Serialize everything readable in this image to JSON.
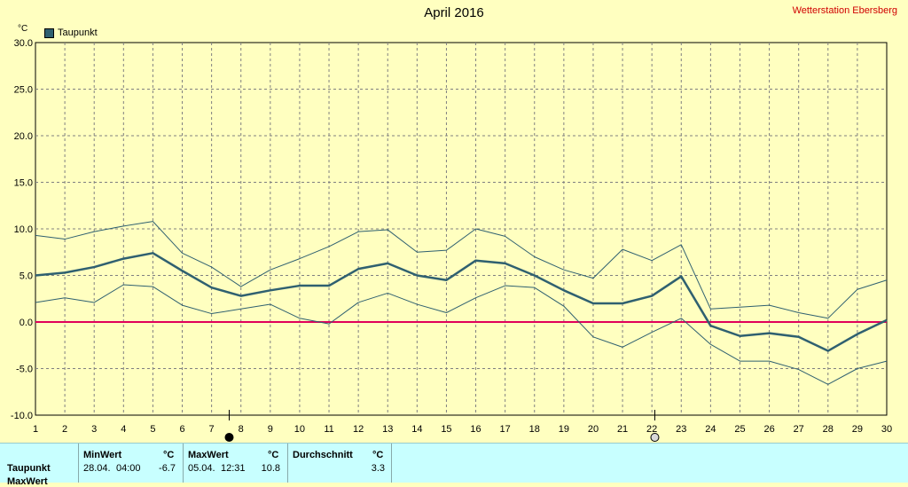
{
  "header": {
    "title": "April 2016",
    "station": "Wetterstation Ebersberg",
    "legend_label": "Taupunkt",
    "unit": "°C"
  },
  "colors": {
    "background": "#ffffc0",
    "series": "#2f6070",
    "zero_line": "#e0005a",
    "grid": "#808080"
  },
  "chart_data": {
    "type": "line",
    "title": "April 2016",
    "ylabel": "°C",
    "xlim": [
      1,
      30
    ],
    "ylim": [
      -10,
      30
    ],
    "x": [
      1,
      2,
      3,
      4,
      5,
      6,
      7,
      8,
      9,
      10,
      11,
      12,
      13,
      14,
      15,
      16,
      17,
      18,
      19,
      20,
      21,
      22,
      23,
      24,
      25,
      26,
      27,
      28,
      29,
      30
    ],
    "y_ticks": [
      "30.0",
      "25.0",
      "20.0",
      "15.0",
      "10.0",
      "5.0",
      "0.0",
      "-5.0",
      "-10.0"
    ],
    "grid": true,
    "legend": "top-left",
    "series": [
      {
        "name": "Taupunkt",
        "role": "mean",
        "values": [
          5.0,
          5.3,
          5.9,
          6.8,
          7.4,
          5.5,
          3.7,
          2.8,
          3.4,
          3.9,
          3.9,
          5.7,
          6.3,
          5.0,
          4.5,
          6.6,
          6.3,
          5.0,
          3.4,
          2.0,
          2.0,
          2.8,
          4.9,
          -0.4,
          -1.5,
          -1.2,
          -1.6,
          -3.1,
          -1.3,
          0.2
        ]
      },
      {
        "role": "max",
        "values": [
          9.3,
          8.9,
          9.7,
          10.3,
          10.8,
          7.4,
          5.9,
          3.8,
          5.6,
          6.8,
          8.1,
          9.7,
          9.9,
          7.5,
          7.7,
          10.0,
          9.2,
          7.0,
          5.6,
          4.7,
          7.8,
          6.6,
          8.3,
          1.4,
          1.6,
          1.8,
          1.0,
          0.4,
          3.5,
          4.5
        ]
      },
      {
        "role": "min",
        "values": [
          2.1,
          2.6,
          2.1,
          4.0,
          3.8,
          1.8,
          0.9,
          1.4,
          1.9,
          0.4,
          -0.2,
          2.1,
          3.1,
          1.9,
          1.0,
          2.6,
          3.9,
          3.7,
          1.7,
          -1.6,
          -2.7,
          -1.1,
          0.4,
          -2.4,
          -4.2,
          -4.2,
          -5.1,
          -6.7,
          -5.0,
          -4.2
        ]
      }
    ],
    "moon_markers": [
      {
        "day": 7.6,
        "phase": "new-moon"
      },
      {
        "day": 22.1,
        "phase": "full-moon"
      }
    ]
  },
  "stats": {
    "row_label": "Taupunkt",
    "next_row_label": "MaxWert",
    "min": {
      "header": "MinWert",
      "unit": "°C",
      "date": "28.04.",
      "time": "04:00",
      "value": "-6.7"
    },
    "max": {
      "header": "MaxWert",
      "unit": "°C",
      "date": "05.04.",
      "time": "12:31",
      "value": "10.8"
    },
    "avg": {
      "header": "Durchschnitt",
      "unit": "°C",
      "value": "3.3"
    }
  }
}
